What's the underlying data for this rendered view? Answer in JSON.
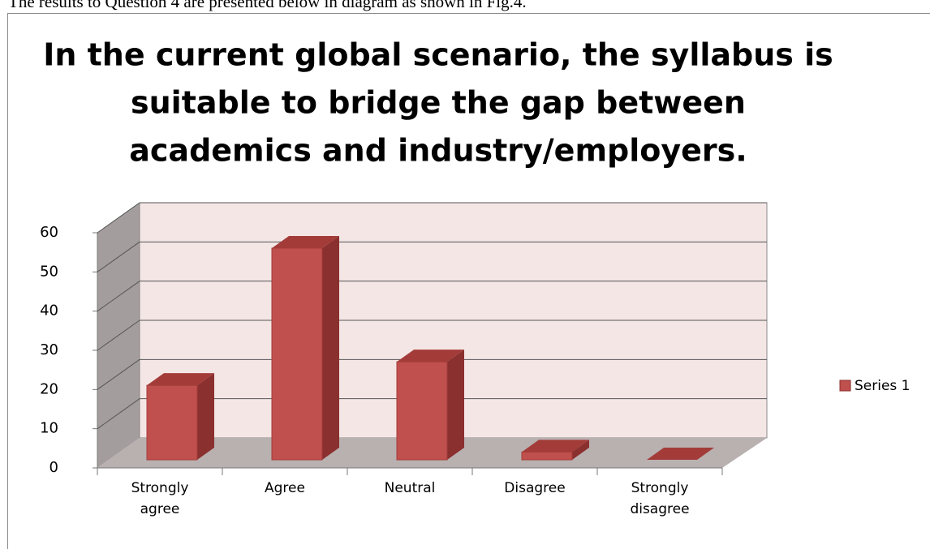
{
  "caption": "The results to Question 4 are presented below in diagram as shown in Fig.4.",
  "chart_data": {
    "type": "bar3d",
    "title": [
      "In the current global scenario, the syllabus is",
      "suitable to bridge the gap between",
      "academics and industry/employers."
    ],
    "categories": [
      "Strongly agree",
      "Agree",
      "Neutral",
      "Disagree",
      "Strongly disagree"
    ],
    "series": [
      {
        "name": "Series 1",
        "color": "#c0504d",
        "values": [
          19,
          54,
          25,
          2,
          0
        ]
      }
    ],
    "ylim": [
      0,
      60
    ],
    "yticks": [
      0,
      10,
      20,
      30,
      40,
      50,
      60
    ],
    "grid": true,
    "legend": "right"
  }
}
